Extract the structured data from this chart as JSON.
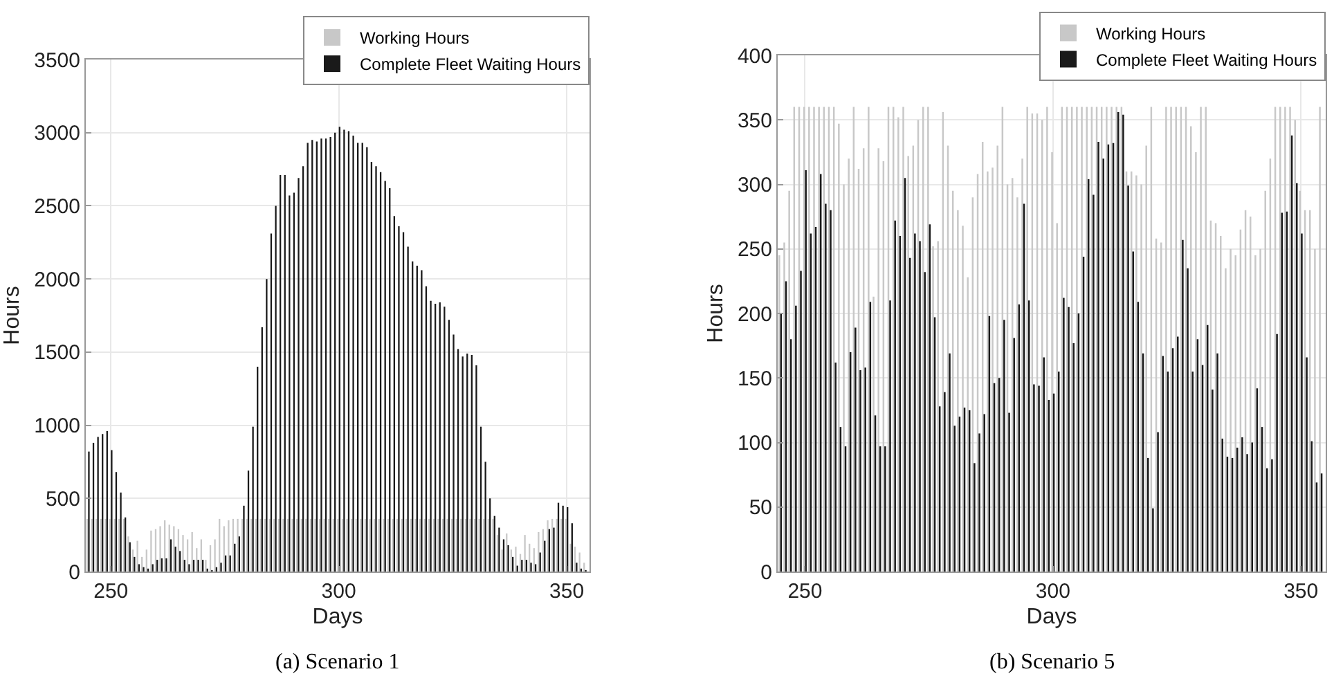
{
  "chart_data": [
    {
      "type": "bar",
      "xlabel": "Days",
      "ylabel": "Hours",
      "annotations": [
        "(a) Scenario 1"
      ],
      "grid": true,
      "legend": "top right",
      "x": [
        245,
        246,
        247,
        248,
        249,
        250,
        251,
        252,
        253,
        254,
        255,
        256,
        257,
        258,
        259,
        260,
        261,
        262,
        263,
        264,
        265,
        266,
        267,
        268,
        269,
        270,
        271,
        272,
        273,
        274,
        275,
        276,
        277,
        278,
        279,
        280,
        281,
        282,
        283,
        284,
        285,
        286,
        287,
        288,
        289,
        290,
        291,
        292,
        293,
        294,
        295,
        296,
        297,
        298,
        299,
        300,
        301,
        302,
        303,
        304,
        305,
        306,
        307,
        308,
        309,
        310,
        311,
        312,
        313,
        314,
        315,
        316,
        317,
        318,
        319,
        320,
        321,
        322,
        323,
        324,
        325,
        326,
        327,
        328,
        329,
        330,
        331,
        332,
        333,
        334,
        335,
        336,
        337,
        338,
        339,
        340,
        341,
        342,
        343,
        344,
        345,
        346,
        347,
        348,
        349,
        350,
        351,
        352,
        353,
        354
      ],
      "xlim": [
        244.5,
        355
      ],
      "xticks": [
        250,
        300,
        350
      ],
      "ylim": [
        0,
        3500
      ],
      "yticks": [
        0,
        500,
        1000,
        1500,
        2000,
        2500,
        3000,
        3500
      ],
      "series": [
        {
          "name": "Working Hours",
          "color": "#c8c8c8",
          "values": [
            360,
            360,
            360,
            360,
            360,
            360,
            360,
            360,
            360,
            240,
            150,
            210,
            100,
            150,
            280,
            290,
            310,
            350,
            320,
            310,
            290,
            250,
            220,
            270,
            160,
            220,
            80,
            180,
            220,
            360,
            310,
            350,
            360,
            360,
            360,
            360,
            360,
            360,
            360,
            360,
            360,
            360,
            360,
            360,
            360,
            360,
            360,
            360,
            360,
            360,
            360,
            360,
            360,
            360,
            360,
            360,
            360,
            360,
            360,
            360,
            360,
            360,
            360,
            360,
            360,
            360,
            360,
            360,
            360,
            360,
            360,
            360,
            360,
            360,
            360,
            360,
            360,
            360,
            360,
            360,
            360,
            360,
            360,
            360,
            360,
            360,
            360,
            360,
            360,
            360,
            250,
            150,
            260,
            150,
            170,
            120,
            250,
            190,
            160,
            270,
            290,
            350,
            360,
            360,
            360,
            360,
            190,
            170,
            130,
            60
          ]
        },
        {
          "name": "Complete Fleet Waiting Hours",
          "color": "#1a1a1a",
          "values": [
            820,
            880,
            920,
            940,
            960,
            830,
            680,
            540,
            370,
            200,
            100,
            50,
            30,
            20,
            50,
            80,
            90,
            90,
            220,
            170,
            140,
            80,
            50,
            80,
            80,
            80,
            20,
            10,
            30,
            60,
            110,
            110,
            190,
            240,
            450,
            690,
            990,
            1400,
            1670,
            2000,
            2310,
            2500,
            2710,
            2710,
            2570,
            2590,
            2690,
            2770,
            2930,
            2950,
            2940,
            2960,
            2960,
            2970,
            3000,
            3040,
            3020,
            3010,
            2980,
            2930,
            2930,
            2900,
            2800,
            2770,
            2730,
            2670,
            2620,
            2430,
            2360,
            2320,
            2220,
            2120,
            2090,
            2060,
            1950,
            1850,
            1830,
            1840,
            1810,
            1720,
            1620,
            1520,
            1470,
            1490,
            1480,
            1410,
            990,
            750,
            500,
            380,
            300,
            220,
            180,
            100,
            40,
            80,
            80,
            60,
            50,
            130,
            210,
            290,
            300,
            470,
            450,
            440,
            330,
            60,
            20,
            10
          ]
        }
      ]
    },
    {
      "type": "bar",
      "xlabel": "Days",
      "ylabel": "Hours",
      "annotations": [
        "(b) Scenario 5"
      ],
      "grid": true,
      "legend": "top right",
      "x": [
        245,
        246,
        247,
        248,
        249,
        250,
        251,
        252,
        253,
        254,
        255,
        256,
        257,
        258,
        259,
        260,
        261,
        262,
        263,
        264,
        265,
        266,
        267,
        268,
        269,
        270,
        271,
        272,
        273,
        274,
        275,
        276,
        277,
        278,
        279,
        280,
        281,
        282,
        283,
        284,
        285,
        286,
        287,
        288,
        289,
        290,
        291,
        292,
        293,
        294,
        295,
        296,
        297,
        298,
        299,
        300,
        301,
        302,
        303,
        304,
        305,
        306,
        307,
        308,
        309,
        310,
        311,
        312,
        313,
        314,
        315,
        316,
        317,
        318,
        319,
        320,
        321,
        322,
        323,
        324,
        325,
        326,
        327,
        328,
        329,
        330,
        331,
        332,
        333,
        334,
        335,
        336,
        337,
        338,
        339,
        340,
        341,
        342,
        343,
        344,
        345,
        346,
        347,
        348,
        349,
        350,
        351,
        352,
        353,
        354
      ],
      "xlim": [
        244.5,
        355
      ],
      "xticks": [
        250,
        300,
        350
      ],
      "ylim": [
        0,
        400
      ],
      "yticks": [
        0,
        50,
        100,
        150,
        200,
        250,
        300,
        350,
        400
      ],
      "series": [
        {
          "name": "Working Hours",
          "color": "#c8c8c8",
          "values": [
            245,
            255,
            295,
            360,
            360,
            360,
            360,
            360,
            360,
            360,
            360,
            360,
            347,
            300,
            320,
            360,
            312,
            328,
            360,
            213,
            328,
            318,
            360,
            360,
            352,
            360,
            322,
            330,
            350,
            360,
            360,
            252,
            256,
            356,
            330,
            295,
            280,
            268,
            228,
            290,
            308,
            333,
            310,
            313,
            330,
            360,
            300,
            305,
            290,
            320,
            360,
            355,
            355,
            350,
            360,
            325,
            270,
            360,
            360,
            360,
            360,
            360,
            360,
            360,
            360,
            360,
            360,
            360,
            360,
            360,
            310,
            310,
            307,
            300,
            330,
            360,
            258,
            255,
            360,
            360,
            360,
            360,
            360,
            345,
            325,
            360,
            360,
            272,
            270,
            260,
            235,
            250,
            245,
            265,
            280,
            275,
            245,
            250,
            295,
            320,
            360,
            360,
            360,
            360,
            350,
            295,
            280,
            280,
            250,
            360
          ]
        },
        {
          "name": "Complete Fleet Waiting Hours",
          "color": "#1a1a1a",
          "values": [
            200,
            225,
            180,
            206,
            233,
            311,
            262,
            267,
            308,
            285,
            280,
            162,
            112,
            97,
            170,
            189,
            156,
            158,
            209,
            121,
            97,
            97,
            210,
            272,
            260,
            305,
            243,
            262,
            256,
            232,
            269,
            197,
            128,
            139,
            169,
            113,
            120,
            127,
            125,
            84,
            107,
            122,
            198,
            146,
            150,
            195,
            123,
            181,
            207,
            285,
            210,
            145,
            144,
            166,
            133,
            138,
            155,
            212,
            205,
            177,
            200,
            244,
            304,
            292,
            333,
            320,
            331,
            332,
            356,
            354,
            299,
            248,
            209,
            169,
            88,
            49,
            108,
            167,
            155,
            173,
            182,
            257,
            235,
            155,
            180,
            160,
            191,
            141,
            169,
            103,
            89,
            88,
            96,
            104,
            91,
            100,
            142,
            112,
            80,
            87,
            184,
            278,
            279,
            338,
            301,
            262,
            166,
            101,
            69,
            76
          ]
        }
      ]
    }
  ]
}
